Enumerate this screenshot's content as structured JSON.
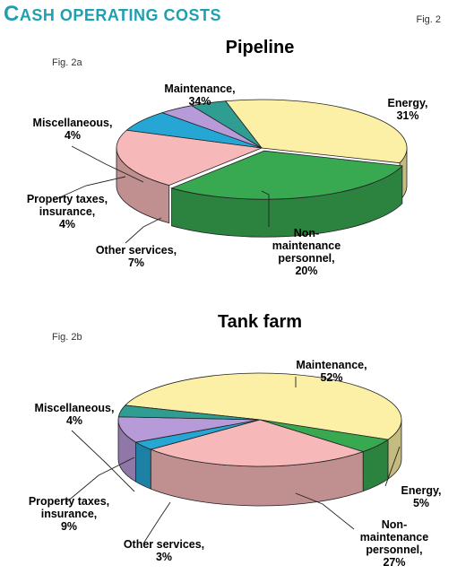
{
  "header": {
    "title_first": "C",
    "title_rest": "ASH OPERATING COSTS",
    "fig_label": "Fig. 2"
  },
  "colors": {
    "title": "#1f9fb2",
    "maintenance": "#fbf0a6",
    "energy": "#38a851",
    "nonmaintenance": "#f6b8b8",
    "other_services": "#25a6d4",
    "property": "#b79ad8",
    "miscellaneous": "#2f9d92"
  },
  "chart_data": [
    {
      "type": "pie",
      "fig_label": "Fig. 2a",
      "title": "Pipeline",
      "slices": [
        {
          "key": "maintenance",
          "label_top": "Maintenance,",
          "label_val": "34%",
          "value": 34
        },
        {
          "key": "energy",
          "label_top": "Energy,",
          "label_val": "31%",
          "value": 31
        },
        {
          "key": "nonmaintenance",
          "label_top": "Non-\nmaintenance\npersonnel,",
          "label_val": "20%",
          "value": 20
        },
        {
          "key": "other_services",
          "label_top": "Other services,",
          "label_val": "7%",
          "value": 7
        },
        {
          "key": "property",
          "label_top": "Property taxes,\ninsurance,",
          "label_val": "4%",
          "value": 4
        },
        {
          "key": "miscellaneous",
          "label_top": "Miscellaneous,",
          "label_val": "4%",
          "value": 4
        }
      ]
    },
    {
      "type": "pie",
      "fig_label": "Fig. 2b",
      "title": "Tank farm",
      "slices": [
        {
          "key": "maintenance",
          "label_top": "Maintenance,",
          "label_val": "52%",
          "value": 52
        },
        {
          "key": "energy",
          "label_top": "Energy,",
          "label_val": "5%",
          "value": 5
        },
        {
          "key": "nonmaintenance",
          "label_top": "Non-\nmaintenance\npersonnel,",
          "label_val": "27%",
          "value": 27
        },
        {
          "key": "other_services",
          "label_top": "Other services,",
          "label_val": "3%",
          "value": 3
        },
        {
          "key": "property",
          "label_top": "Property taxes,\ninsurance,",
          "label_val": "9%",
          "value": 9
        },
        {
          "key": "miscellaneous",
          "label_top": "Miscellaneous,",
          "label_val": "4%",
          "value": 4
        }
      ]
    }
  ]
}
